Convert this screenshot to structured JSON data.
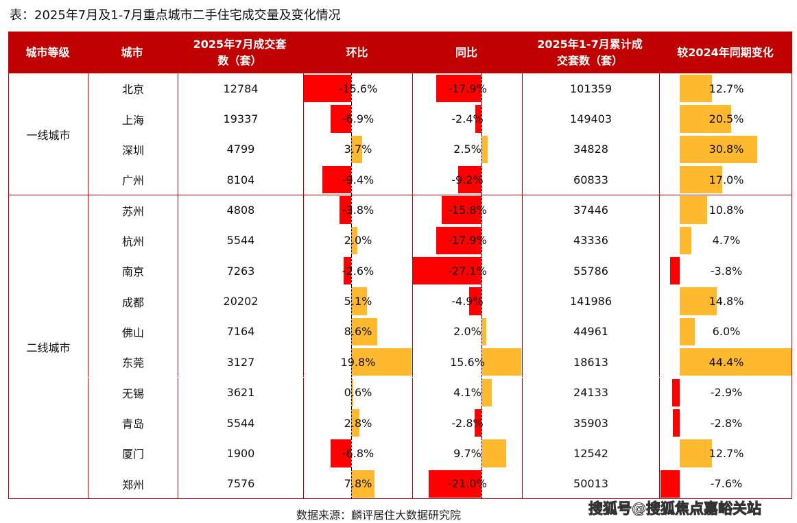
{
  "title": "表：2025年7月及1-7月重点城市二手住宅成交量及变化情况",
  "source": "数据来源：麟评居住大数据研究院",
  "watermark": "搜狐号@搜狐焦点嘉峪关站",
  "colors": {
    "header": "#C00000",
    "negative": "#FF0000",
    "positive": "#FFB92E"
  },
  "chart_data": {
    "type": "table",
    "columns": [
      "城市等级",
      "城市",
      "2025年7月成交套数（套）",
      "环比",
      "同比",
      "2025年1-7月累计成交套数（套）",
      "较2024年同期变化"
    ],
    "tiers": [
      {
        "name": "一线城市",
        "rows": 4
      },
      {
        "name": "二线城市",
        "rows": 10
      }
    ],
    "rows": [
      {
        "city": "北京",
        "july": "12784",
        "mom": -15.6,
        "yoy": -17.9,
        "cum": "101359",
        "chg": 12.7
      },
      {
        "city": "上海",
        "july": "19337",
        "mom": -6.9,
        "yoy": -2.4,
        "cum": "149403",
        "chg": 20.5
      },
      {
        "city": "深圳",
        "july": "4799",
        "mom": 3.7,
        "yoy": 2.5,
        "cum": "34828",
        "chg": 30.8
      },
      {
        "city": "广州",
        "july": "8104",
        "mom": -9.4,
        "yoy": -9.2,
        "cum": "60833",
        "chg": 17.0
      },
      {
        "city": "苏州",
        "july": "4808",
        "mom": -3.8,
        "yoy": -15.8,
        "cum": "37446",
        "chg": 10.8
      },
      {
        "city": "杭州",
        "july": "5544",
        "mom": 2.0,
        "yoy": -17.9,
        "cum": "43336",
        "chg": 4.7
      },
      {
        "city": "南京",
        "july": "7263",
        "mom": -2.6,
        "yoy": -27.1,
        "cum": "55786",
        "chg": -3.8
      },
      {
        "city": "成都",
        "july": "20202",
        "mom": 5.1,
        "yoy": -4.9,
        "cum": "141986",
        "chg": 14.8
      },
      {
        "city": "佛山",
        "july": "7164",
        "mom": 8.6,
        "yoy": 2.0,
        "cum": "44961",
        "chg": 6.0
      },
      {
        "city": "东莞",
        "july": "3127",
        "mom": 19.8,
        "yoy": 15.6,
        "cum": "18613",
        "chg": 44.4
      },
      {
        "city": "无锡",
        "july": "3621",
        "mom": 0.6,
        "yoy": 4.1,
        "cum": "24133",
        "chg": -2.9
      },
      {
        "city": "青岛",
        "july": "5544",
        "mom": 2.8,
        "yoy": -2.8,
        "cum": "35903",
        "chg": -2.8
      },
      {
        "city": "厦门",
        "july": "1900",
        "mom": -6.8,
        "yoy": 9.7,
        "cum": "12542",
        "chg": 12.7
      },
      {
        "city": "郑州",
        "july": "7576",
        "mom": 7.8,
        "yoy": -21.0,
        "cum": "50013",
        "chg": -7.6
      }
    ]
  }
}
